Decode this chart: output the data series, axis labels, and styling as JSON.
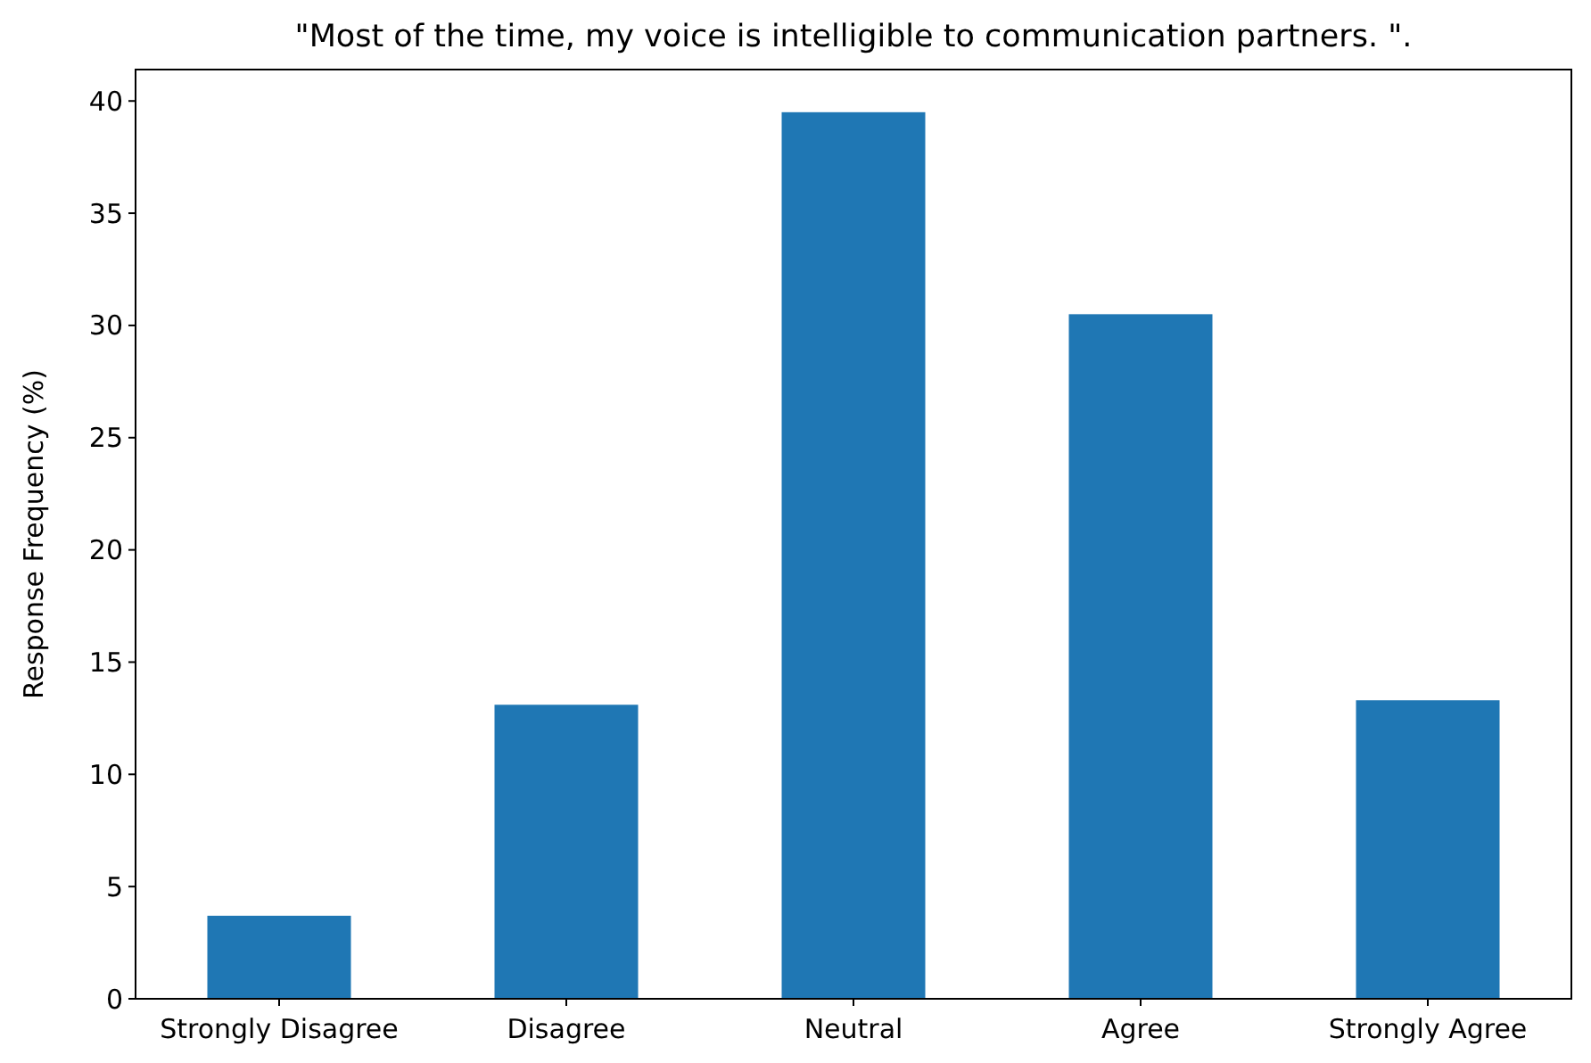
{
  "chart_data": {
    "type": "bar",
    "title": "\"Most of the time, my voice is intelligible to communication partners. \".",
    "ylabel": "Response Frequency (%)",
    "categories": [
      "Strongly Disagree",
      "Disagree",
      "Neutral",
      "Agree",
      "Strongly Agree"
    ],
    "values": [
      3.7,
      13.1,
      39.5,
      30.5,
      13.3
    ],
    "color": "#1f77b4",
    "ylim": [
      0,
      41.4
    ],
    "yticks": [
      0,
      5,
      10,
      15,
      20,
      25,
      30,
      35,
      40
    ],
    "grid": false
  }
}
